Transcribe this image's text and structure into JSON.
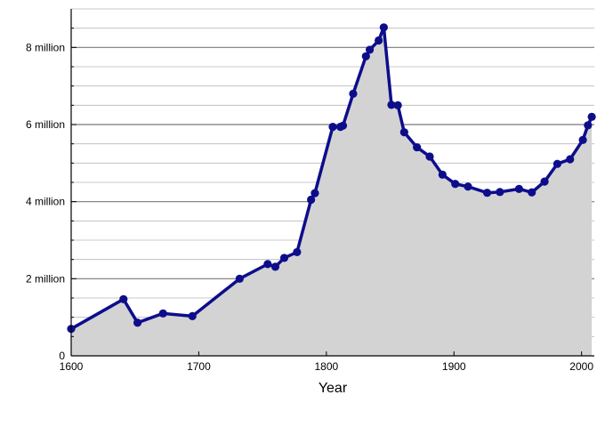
{
  "chart_data": {
    "type": "area",
    "title": "",
    "xlabel": "Year",
    "ylabel": "",
    "xlim": [
      1600,
      2010
    ],
    "ylim": [
      0,
      9000000
    ],
    "x_ticks": [
      1600,
      1700,
      1800,
      1900,
      2000
    ],
    "x_tick_labels": [
      "1600",
      "1700",
      "1800",
      "1900",
      "2000"
    ],
    "y_ticks": [
      0,
      2000000,
      4000000,
      6000000,
      8000000
    ],
    "y_tick_labels": [
      "0",
      "2 million",
      "4 million",
      "6 million",
      "8 million"
    ],
    "y_minor_step": 500000,
    "grid": true,
    "colors": {
      "line": "#0d0d8c",
      "fill": "#d3d3d3",
      "major_grid": "#7a7a7a",
      "minor_grid": "#b8b8b8"
    },
    "series": [
      {
        "x": [
          1600,
          1641,
          1652,
          1672,
          1695,
          1732,
          1754,
          1760,
          1767,
          1777,
          1788,
          1791,
          1805,
          1811,
          1813,
          1821,
          1831,
          1834,
          1841,
          1845,
          1851,
          1856,
          1861,
          1871,
          1881,
          1891,
          1901,
          1911,
          1926,
          1936,
          1951,
          1961,
          1971,
          1981,
          1991,
          2001,
          2005,
          2008
        ],
        "y": [
          700000,
          1470000,
          860000,
          1100000,
          1030000,
          2000000,
          2380000,
          2310000,
          2540000,
          2690000,
          4050000,
          4220000,
          5940000,
          5940000,
          5970000,
          6800000,
          7770000,
          7940000,
          8180000,
          8520000,
          6510000,
          6500000,
          5800000,
          5410000,
          5170000,
          4700000,
          4460000,
          4390000,
          4230000,
          4250000,
          4330000,
          4240000,
          4520000,
          4980000,
          5100000,
          5600000,
          5980000,
          6200000
        ]
      }
    ]
  }
}
